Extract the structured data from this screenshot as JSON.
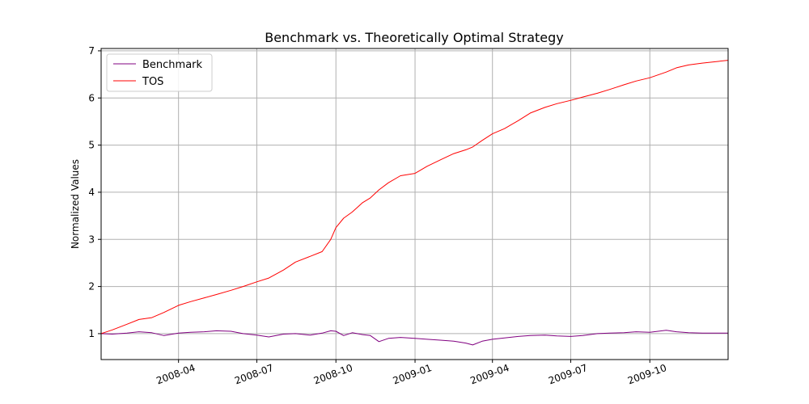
{
  "chart_data": {
    "type": "line",
    "title": "Benchmark vs. Theoretically Optimal Strategy",
    "xlabel": "",
    "ylabel": "Normalized Values",
    "xlim": [
      "2008-01-02",
      "2009-12-31"
    ],
    "ylim": [
      0.45,
      7.05
    ],
    "yticks": [
      1,
      2,
      3,
      4,
      5,
      6,
      7
    ],
    "xticks": [
      {
        "date": "2008-04-01",
        "label": "2008-04"
      },
      {
        "date": "2008-07-01",
        "label": "2008-07"
      },
      {
        "date": "2008-10-01",
        "label": "2008-10"
      },
      {
        "date": "2009-01-01",
        "label": "2009-01"
      },
      {
        "date": "2009-04-01",
        "label": "2009-04"
      },
      {
        "date": "2009-07-01",
        "label": "2009-07"
      },
      {
        "date": "2009-10-01",
        "label": "2009-10"
      }
    ],
    "xtick_rotation_deg": 20,
    "grid": true,
    "legend_position": "top-left",
    "series": [
      {
        "name": "Benchmark",
        "color": "#800080",
        "points": [
          [
            "2008-01-02",
            1.0
          ],
          [
            "2008-01-15",
            0.99
          ],
          [
            "2008-02-01",
            1.01
          ],
          [
            "2008-02-15",
            1.04
          ],
          [
            "2008-03-01",
            1.02
          ],
          [
            "2008-03-15",
            0.96
          ],
          [
            "2008-04-01",
            1.01
          ],
          [
            "2008-04-15",
            1.03
          ],
          [
            "2008-05-01",
            1.04
          ],
          [
            "2008-05-15",
            1.06
          ],
          [
            "2008-06-01",
            1.05
          ],
          [
            "2008-06-15",
            1.0
          ],
          [
            "2008-07-01",
            0.97
          ],
          [
            "2008-07-15",
            0.93
          ],
          [
            "2008-08-01",
            0.99
          ],
          [
            "2008-08-15",
            1.0
          ],
          [
            "2008-09-01",
            0.97
          ],
          [
            "2008-09-15",
            1.01
          ],
          [
            "2008-09-25",
            1.06
          ],
          [
            "2008-10-01",
            1.05
          ],
          [
            "2008-10-10",
            0.96
          ],
          [
            "2008-10-20",
            1.02
          ],
          [
            "2008-11-01",
            0.98
          ],
          [
            "2008-11-10",
            0.96
          ],
          [
            "2008-11-20",
            0.83
          ],
          [
            "2008-12-01",
            0.9
          ],
          [
            "2008-12-15",
            0.92
          ],
          [
            "2009-01-01",
            0.9
          ],
          [
            "2009-01-15",
            0.88
          ],
          [
            "2009-02-01",
            0.86
          ],
          [
            "2009-02-15",
            0.84
          ],
          [
            "2009-03-01",
            0.8
          ],
          [
            "2009-03-09",
            0.76
          ],
          [
            "2009-03-20",
            0.84
          ],
          [
            "2009-04-01",
            0.88
          ],
          [
            "2009-04-15",
            0.91
          ],
          [
            "2009-05-01",
            0.94
          ],
          [
            "2009-05-15",
            0.96
          ],
          [
            "2009-06-01",
            0.97
          ],
          [
            "2009-06-15",
            0.95
          ],
          [
            "2009-07-01",
            0.94
          ],
          [
            "2009-07-15",
            0.96
          ],
          [
            "2009-08-01",
            1.0
          ],
          [
            "2009-08-15",
            1.01
          ],
          [
            "2009-09-01",
            1.02
          ],
          [
            "2009-09-15",
            1.04
          ],
          [
            "2009-10-01",
            1.03
          ],
          [
            "2009-10-20",
            1.07
          ],
          [
            "2009-11-01",
            1.04
          ],
          [
            "2009-11-15",
            1.02
          ],
          [
            "2009-12-01",
            1.01
          ],
          [
            "2009-12-31",
            1.01
          ]
        ]
      },
      {
        "name": "TOS",
        "color": "#ff0000",
        "points": [
          [
            "2008-01-02",
            1.0
          ],
          [
            "2008-01-15",
            1.08
          ],
          [
            "2008-02-01",
            1.2
          ],
          [
            "2008-02-15",
            1.3
          ],
          [
            "2008-03-01",
            1.34
          ],
          [
            "2008-03-15",
            1.45
          ],
          [
            "2008-04-01",
            1.6
          ],
          [
            "2008-04-15",
            1.68
          ],
          [
            "2008-05-01",
            1.76
          ],
          [
            "2008-05-15",
            1.83
          ],
          [
            "2008-06-01",
            1.92
          ],
          [
            "2008-06-15",
            2.0
          ],
          [
            "2008-07-01",
            2.1
          ],
          [
            "2008-07-15",
            2.18
          ],
          [
            "2008-08-01",
            2.35
          ],
          [
            "2008-08-15",
            2.52
          ],
          [
            "2008-09-01",
            2.64
          ],
          [
            "2008-09-15",
            2.74
          ],
          [
            "2008-09-25",
            3.0
          ],
          [
            "2008-10-01",
            3.25
          ],
          [
            "2008-10-10",
            3.45
          ],
          [
            "2008-10-20",
            3.58
          ],
          [
            "2008-11-01",
            3.78
          ],
          [
            "2008-11-10",
            3.88
          ],
          [
            "2008-11-20",
            4.05
          ],
          [
            "2008-12-01",
            4.2
          ],
          [
            "2008-12-15",
            4.35
          ],
          [
            "2009-01-01",
            4.4
          ],
          [
            "2009-01-15",
            4.55
          ],
          [
            "2009-02-01",
            4.7
          ],
          [
            "2009-02-15",
            4.82
          ],
          [
            "2009-03-01",
            4.9
          ],
          [
            "2009-03-09",
            4.96
          ],
          [
            "2009-03-20",
            5.1
          ],
          [
            "2009-04-01",
            5.24
          ],
          [
            "2009-04-15",
            5.35
          ],
          [
            "2009-05-01",
            5.52
          ],
          [
            "2009-05-15",
            5.68
          ],
          [
            "2009-06-01",
            5.8
          ],
          [
            "2009-06-15",
            5.88
          ],
          [
            "2009-07-01",
            5.95
          ],
          [
            "2009-07-15",
            6.02
          ],
          [
            "2009-08-01",
            6.1
          ],
          [
            "2009-08-15",
            6.18
          ],
          [
            "2009-09-01",
            6.28
          ],
          [
            "2009-09-15",
            6.36
          ],
          [
            "2009-10-01",
            6.43
          ],
          [
            "2009-10-20",
            6.55
          ],
          [
            "2009-11-01",
            6.64
          ],
          [
            "2009-11-15",
            6.7
          ],
          [
            "2009-12-01",
            6.74
          ],
          [
            "2009-12-31",
            6.8
          ]
        ]
      }
    ]
  }
}
